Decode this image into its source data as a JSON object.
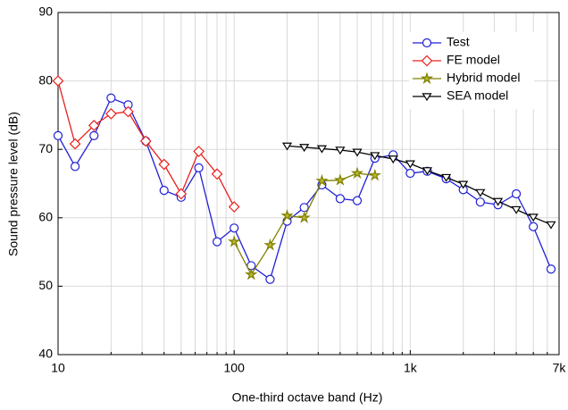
{
  "chart_data": {
    "type": "line",
    "x_label": "One-third octave band (Hz)",
    "y_label": "Sound pressure level (dB)",
    "log_x": true,
    "grid": true,
    "legend": "upper right",
    "xlim": [
      10,
      7000
    ],
    "xticks": [
      10,
      100,
      {
        "value": 1000,
        "label": "1k"
      },
      {
        "value": 7000,
        "label": "7k"
      }
    ],
    "xminor": [
      20,
      30,
      40,
      50,
      60,
      70,
      80,
      90,
      200,
      300,
      400,
      500,
      600,
      700,
      800,
      900,
      2000,
      3000,
      4000,
      5000,
      6000
    ],
    "ylim": [
      40,
      90
    ],
    "yticks": [
      40,
      50,
      60,
      70,
      80,
      90
    ],
    "series": [
      {
        "name": "Test",
        "color": "#1f1fd6",
        "marker": "circle",
        "x": [
          10,
          12.5,
          16,
          20,
          25,
          31.5,
          40,
          50,
          63,
          80,
          100,
          125,
          160,
          200,
          250,
          315,
          400,
          500,
          630,
          800,
          1000,
          1250,
          1600,
          2000,
          2500,
          3150,
          4000,
          5000,
          6300
        ],
        "values": [
          72,
          67.5,
          72,
          77.5,
          76.5,
          71.2,
          64,
          63,
          67.3,
          56.5,
          58.5,
          53,
          51,
          59.5,
          61.5,
          64.8,
          62.8,
          62.5,
          68.7,
          69.2,
          66.5,
          66.8,
          65.7,
          64.1,
          62.3,
          61.9,
          63.5,
          58.7,
          52.5
        ]
      },
      {
        "name": "FE model",
        "color": "#e8201c",
        "marker": "diamond",
        "x": [
          10,
          12.5,
          16,
          20,
          25,
          31.5,
          40,
          50,
          63,
          80,
          100
        ],
        "values": [
          80,
          70.8,
          73.5,
          75.2,
          75.5,
          71.2,
          67.8,
          63.5,
          69.7,
          66.4,
          61.6
        ]
      },
      {
        "name": "Hybrid model",
        "color": "#808000",
        "marker": "star",
        "x": [
          100,
          125,
          160,
          200,
          250,
          315,
          400,
          500,
          630
        ],
        "values": [
          56.5,
          51.7,
          56,
          60.3,
          60,
          65.4,
          65.5,
          66.5,
          66.2
        ]
      },
      {
        "name": "SEA model",
        "color": "#000000",
        "marker": "triangle-down",
        "x": [
          200,
          250,
          315,
          400,
          500,
          630,
          800,
          1000,
          1250,
          1600,
          2000,
          2500,
          3150,
          4000,
          5000,
          6300
        ],
        "values": [
          70.5,
          70.3,
          70.1,
          69.9,
          69.6,
          69.1,
          68.6,
          67.9,
          66.9,
          65.9,
          64.9,
          63.7,
          62.4,
          61.2,
          60.1,
          59.0
        ]
      }
    ]
  }
}
